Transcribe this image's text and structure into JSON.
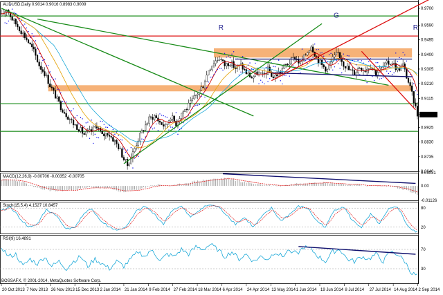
{
  "header": {
    "symbol_line": "AUDUSD,Daily  0.9014 0.9016 0.8983 0.9009",
    "current_price": "0.9009",
    "footer": "BOSSAFX, © 2001-2014, MetaQuotes Software Corp."
  },
  "colors": {
    "bull_candle": "#000000",
    "bear_candle": "#000000",
    "ma_fast": "#cc0000",
    "ma_slow": "#e6a817",
    "ma_cyan": "#1aa8d8",
    "parabolic_sar": "#0000ee",
    "support_green": "#1a8c1a",
    "resistance_red": "#dd1111",
    "zone_orange": "#f4a460",
    "trend_navy": "#10106e",
    "macd_signal": "#e02020",
    "stoch_main": "#1aa8d8",
    "stoch_signal": "#e02020",
    "rsi_line": "#1aa8d8"
  },
  "chart_data": [
    {
      "type": "line",
      "panel": "price",
      "title": "AUDUSD,Daily  0.9014 0.9016 0.8983 0.9009",
      "price_ticks": [
        "0.9700",
        "0.9590",
        "0.9495",
        "0.9400",
        "0.9305",
        "0.9210",
        "0.9115",
        "0.9009",
        "0.8925",
        "0.8830",
        "0.8735",
        "0.8640"
      ],
      "ylim": [
        0.864,
        0.9745
      ],
      "date_ticks": [
        "20 Oct 2013",
        "7 Nov 2013",
        "26 Nov 2013",
        "15 Dec 2013",
        "2 Jan 2014",
        "21 Jan 2014",
        "9 Feb 2014",
        "27 Feb 2014",
        "18 Mar 2014",
        "6 Apr 2014",
        "24 Apr 2014",
        "13 May 2014",
        "1 Jun 2014",
        "19 Jun 2014",
        "8 Jul 2014",
        "27 Jul 2014",
        "14 Aug 2014",
        "2 Sep 2014"
      ],
      "close_anchors": [
        [
          0,
          0.965
        ],
        [
          3,
          0.97
        ],
        [
          6,
          0.963
        ],
        [
          10,
          0.957
        ],
        [
          14,
          0.95
        ],
        [
          18,
          0.942
        ],
        [
          21,
          0.933
        ],
        [
          24,
          0.928
        ],
        [
          27,
          0.92
        ],
        [
          30,
          0.913
        ],
        [
          33,
          0.906
        ],
        [
          36,
          0.901
        ],
        [
          40,
          0.895
        ],
        [
          43,
          0.892
        ],
        [
          46,
          0.888
        ],
        [
          50,
          0.89
        ],
        [
          53,
          0.894
        ],
        [
          56,
          0.887
        ],
        [
          59,
          0.889
        ],
        [
          62,
          0.885
        ],
        [
          65,
          0.88
        ],
        [
          68,
          0.872
        ],
        [
          70,
          0.868
        ],
        [
          73,
          0.876
        ],
        [
          76,
          0.885
        ],
        [
          79,
          0.892
        ],
        [
          82,
          0.898
        ],
        [
          85,
          0.9
        ],
        [
          88,
          0.896
        ],
        [
          91,
          0.893
        ],
        [
          94,
          0.9
        ],
        [
          97,
          0.895
        ],
        [
          100,
          0.902
        ],
        [
          103,
          0.905
        ],
        [
          106,
          0.91
        ],
        [
          109,
          0.915
        ],
        [
          112,
          0.92
        ],
        [
          115,
          0.93
        ],
        [
          118,
          0.935
        ],
        [
          121,
          0.938
        ],
        [
          124,
          0.933
        ],
        [
          127,
          0.935
        ],
        [
          130,
          0.931
        ],
        [
          133,
          0.933
        ],
        [
          136,
          0.928
        ],
        [
          139,
          0.925
        ],
        [
          142,
          0.928
        ],
        [
          145,
          0.926
        ],
        [
          148,
          0.93
        ],
        [
          151,
          0.925
        ],
        [
          154,
          0.928
        ],
        [
          157,
          0.932
        ],
        [
          160,
          0.935
        ],
        [
          163,
          0.938
        ],
        [
          166,
          0.934
        ],
        [
          169,
          0.94
        ],
        [
          172,
          0.946
        ],
        [
          175,
          0.938
        ],
        [
          178,
          0.933
        ],
        [
          181,
          0.93
        ],
        [
          184,
          0.937
        ],
        [
          187,
          0.941
        ],
        [
          190,
          0.934
        ],
        [
          193,
          0.93
        ],
        [
          196,
          0.928
        ],
        [
          199,
          0.932
        ],
        [
          202,
          0.93
        ],
        [
          205,
          0.933
        ],
        [
          208,
          0.928
        ],
        [
          211,
          0.931
        ],
        [
          214,
          0.934
        ],
        [
          217,
          0.935
        ],
        [
          220,
          0.93
        ],
        [
          223,
          0.933
        ],
        [
          226,
          0.922
        ],
        [
          229,
          0.91
        ],
        [
          231,
          0.9009
        ]
      ],
      "horizontal_levels": [
        {
          "name": "support-top",
          "price": 0.965,
          "color": "#1a8c1a"
        },
        {
          "name": "resistance-red",
          "price": 0.952,
          "color": "#dd1111"
        },
        {
          "name": "support-mid",
          "price": 0.908,
          "color": "#1a8c1a"
        },
        {
          "name": "support-low",
          "price": 0.89,
          "color": "#1a8c1a"
        }
      ],
      "zones": [
        {
          "name": "zone-upper",
          "from_bar": 118,
          "to_bar": 228,
          "price_low": 0.938,
          "price_high": 0.944
        },
        {
          "name": "zone-lower",
          "from_bar": 26,
          "to_bar": 228,
          "price_low": 0.916,
          "price_high": 0.92
        }
      ],
      "trendlines": [
        {
          "name": "falling-green-1",
          "from": [
            0,
            0.97
          ],
          "to": [
            140,
            0.9
          ],
          "color": "#1a8c1a"
        },
        {
          "name": "falling-green-2",
          "from": [
            20,
            0.963
          ],
          "to": [
            215,
            0.92
          ],
          "color": "#1a8c1a"
        },
        {
          "name": "rising-green",
          "from": [
            68,
            0.869
          ],
          "to": [
            178,
            0.96
          ],
          "color": "#1a8c1a"
        },
        {
          "name": "rising-red",
          "from": [
            150,
            0.923
          ],
          "to": [
            238,
            0.976
          ],
          "color": "#dd1111"
        },
        {
          "name": "falling-red",
          "from": [
            200,
            0.942
          ],
          "to": [
            230,
            0.904
          ],
          "color": "#dd1111"
        },
        {
          "name": "channel-top",
          "from": [
            130,
            0.937
          ],
          "to": [
            228,
            0.937
          ],
          "color": "#10106e"
        },
        {
          "name": "channel-bottom",
          "from": [
            150,
            0.928
          ],
          "to": [
            228,
            0.9255
          ],
          "color": "#10106e"
        }
      ],
      "annotations": [
        {
          "text": "R",
          "bar": 122,
          "price": 0.956
        },
        {
          "text": "G",
          "bar": 186,
          "price": 0.964
        },
        {
          "text": "R",
          "bar": 230,
          "price": 0.956
        }
      ]
    },
    {
      "type": "line",
      "panel": "macd",
      "title": "MACD(12,26,9) -0.00706 -0.00352 -0.00705",
      "ticks": [
        "0.01031",
        "0.00",
        "-0.01126"
      ],
      "ylim": [
        -0.01126,
        0.01031
      ],
      "anchors": [
        [
          0,
          0.005
        ],
        [
          10,
          0.004
        ],
        [
          20,
          -0.002
        ],
        [
          30,
          -0.004
        ],
        [
          40,
          -0.003
        ],
        [
          50,
          -0.001
        ],
        [
          60,
          -0.002
        ],
        [
          68,
          -0.005
        ],
        [
          75,
          -0.003
        ],
        [
          85,
          0.001
        ],
        [
          95,
          0.0
        ],
        [
          105,
          0.003
        ],
        [
          115,
          0.005
        ],
        [
          125,
          0.006
        ],
        [
          135,
          0.003
        ],
        [
          145,
          0.001
        ],
        [
          155,
          0.0
        ],
        [
          165,
          0.002
        ],
        [
          175,
          0.003
        ],
        [
          185,
          0.002
        ],
        [
          195,
          0.001
        ],
        [
          205,
          0.0
        ],
        [
          215,
          0.0
        ],
        [
          222,
          -0.002
        ],
        [
          228,
          -0.005
        ],
        [
          231,
          -0.007
        ]
      ],
      "trendline": {
        "from": [
          123,
          0.0095
        ],
        "to": [
          230,
          0.002
        ]
      }
    },
    {
      "type": "line",
      "panel": "stochastic",
      "title": "Stoch(15,5,4) 4.1527 10.8457",
      "ticks": [
        "80",
        "20"
      ],
      "ylim": [
        0,
        100
      ],
      "anchors": [
        [
          0,
          70
        ],
        [
          5,
          85
        ],
        [
          10,
          50
        ],
        [
          15,
          20
        ],
        [
          20,
          30
        ],
        [
          25,
          75
        ],
        [
          30,
          60
        ],
        [
          35,
          20
        ],
        [
          40,
          15
        ],
        [
          45,
          55
        ],
        [
          50,
          80
        ],
        [
          55,
          40
        ],
        [
          60,
          20
        ],
        [
          65,
          10
        ],
        [
          70,
          25
        ],
        [
          75,
          70
        ],
        [
          80,
          85
        ],
        [
          85,
          60
        ],
        [
          90,
          30
        ],
        [
          95,
          75
        ],
        [
          100,
          85
        ],
        [
          105,
          50
        ],
        [
          110,
          75
        ],
        [
          115,
          90
        ],
        [
          120,
          85
        ],
        [
          125,
          60
        ],
        [
          130,
          30
        ],
        [
          135,
          50
        ],
        [
          140,
          20
        ],
        [
          145,
          55
        ],
        [
          150,
          80
        ],
        [
          155,
          40
        ],
        [
          160,
          60
        ],
        [
          165,
          85
        ],
        [
          170,
          80
        ],
        [
          175,
          40
        ],
        [
          180,
          20
        ],
        [
          185,
          75
        ],
        [
          190,
          85
        ],
        [
          195,
          40
        ],
        [
          200,
          20
        ],
        [
          205,
          60
        ],
        [
          210,
          30
        ],
        [
          215,
          75
        ],
        [
          220,
          85
        ],
        [
          225,
          30
        ],
        [
          228,
          10
        ],
        [
          231,
          4
        ]
      ]
    },
    {
      "type": "line",
      "panel": "rsi",
      "title": "RSI(9) 16.4891",
      "ticks": [
        "70",
        "30"
      ],
      "ylim": [
        0,
        100
      ],
      "anchors": [
        [
          0,
          75
        ],
        [
          4,
          55
        ],
        [
          8,
          60
        ],
        [
          12,
          35
        ],
        [
          16,
          50
        ],
        [
          20,
          40
        ],
        [
          24,
          55
        ],
        [
          28,
          35
        ],
        [
          32,
          45
        ],
        [
          36,
          30
        ],
        [
          40,
          45
        ],
        [
          44,
          55
        ],
        [
          48,
          35
        ],
        [
          52,
          50
        ],
        [
          56,
          40
        ],
        [
          60,
          30
        ],
        [
          64,
          45
        ],
        [
          68,
          35
        ],
        [
          72,
          50
        ],
        [
          76,
          65
        ],
        [
          80,
          55
        ],
        [
          84,
          70
        ],
        [
          88,
          45
        ],
        [
          92,
          60
        ],
        [
          96,
          55
        ],
        [
          100,
          70
        ],
        [
          104,
          60
        ],
        [
          108,
          75
        ],
        [
          112,
          70
        ],
        [
          116,
          80
        ],
        [
          120,
          70
        ],
        [
          124,
          55
        ],
        [
          128,
          65
        ],
        [
          132,
          50
        ],
        [
          136,
          60
        ],
        [
          140,
          45
        ],
        [
          144,
          55
        ],
        [
          148,
          50
        ],
        [
          152,
          65
        ],
        [
          156,
          55
        ],
        [
          160,
          70
        ],
        [
          164,
          60
        ],
        [
          168,
          75
        ],
        [
          172,
          70
        ],
        [
          176,
          55
        ],
        [
          180,
          45
        ],
        [
          184,
          65
        ],
        [
          188,
          70
        ],
        [
          192,
          50
        ],
        [
          196,
          45
        ],
        [
          200,
          55
        ],
        [
          204,
          50
        ],
        [
          208,
          60
        ],
        [
          212,
          45
        ],
        [
          216,
          65
        ],
        [
          220,
          60
        ],
        [
          224,
          45
        ],
        [
          228,
          20
        ],
        [
          231,
          16
        ]
      ],
      "trendline": {
        "from": [
          165,
          76
        ],
        "to": [
          230,
          60
        ]
      }
    }
  ]
}
